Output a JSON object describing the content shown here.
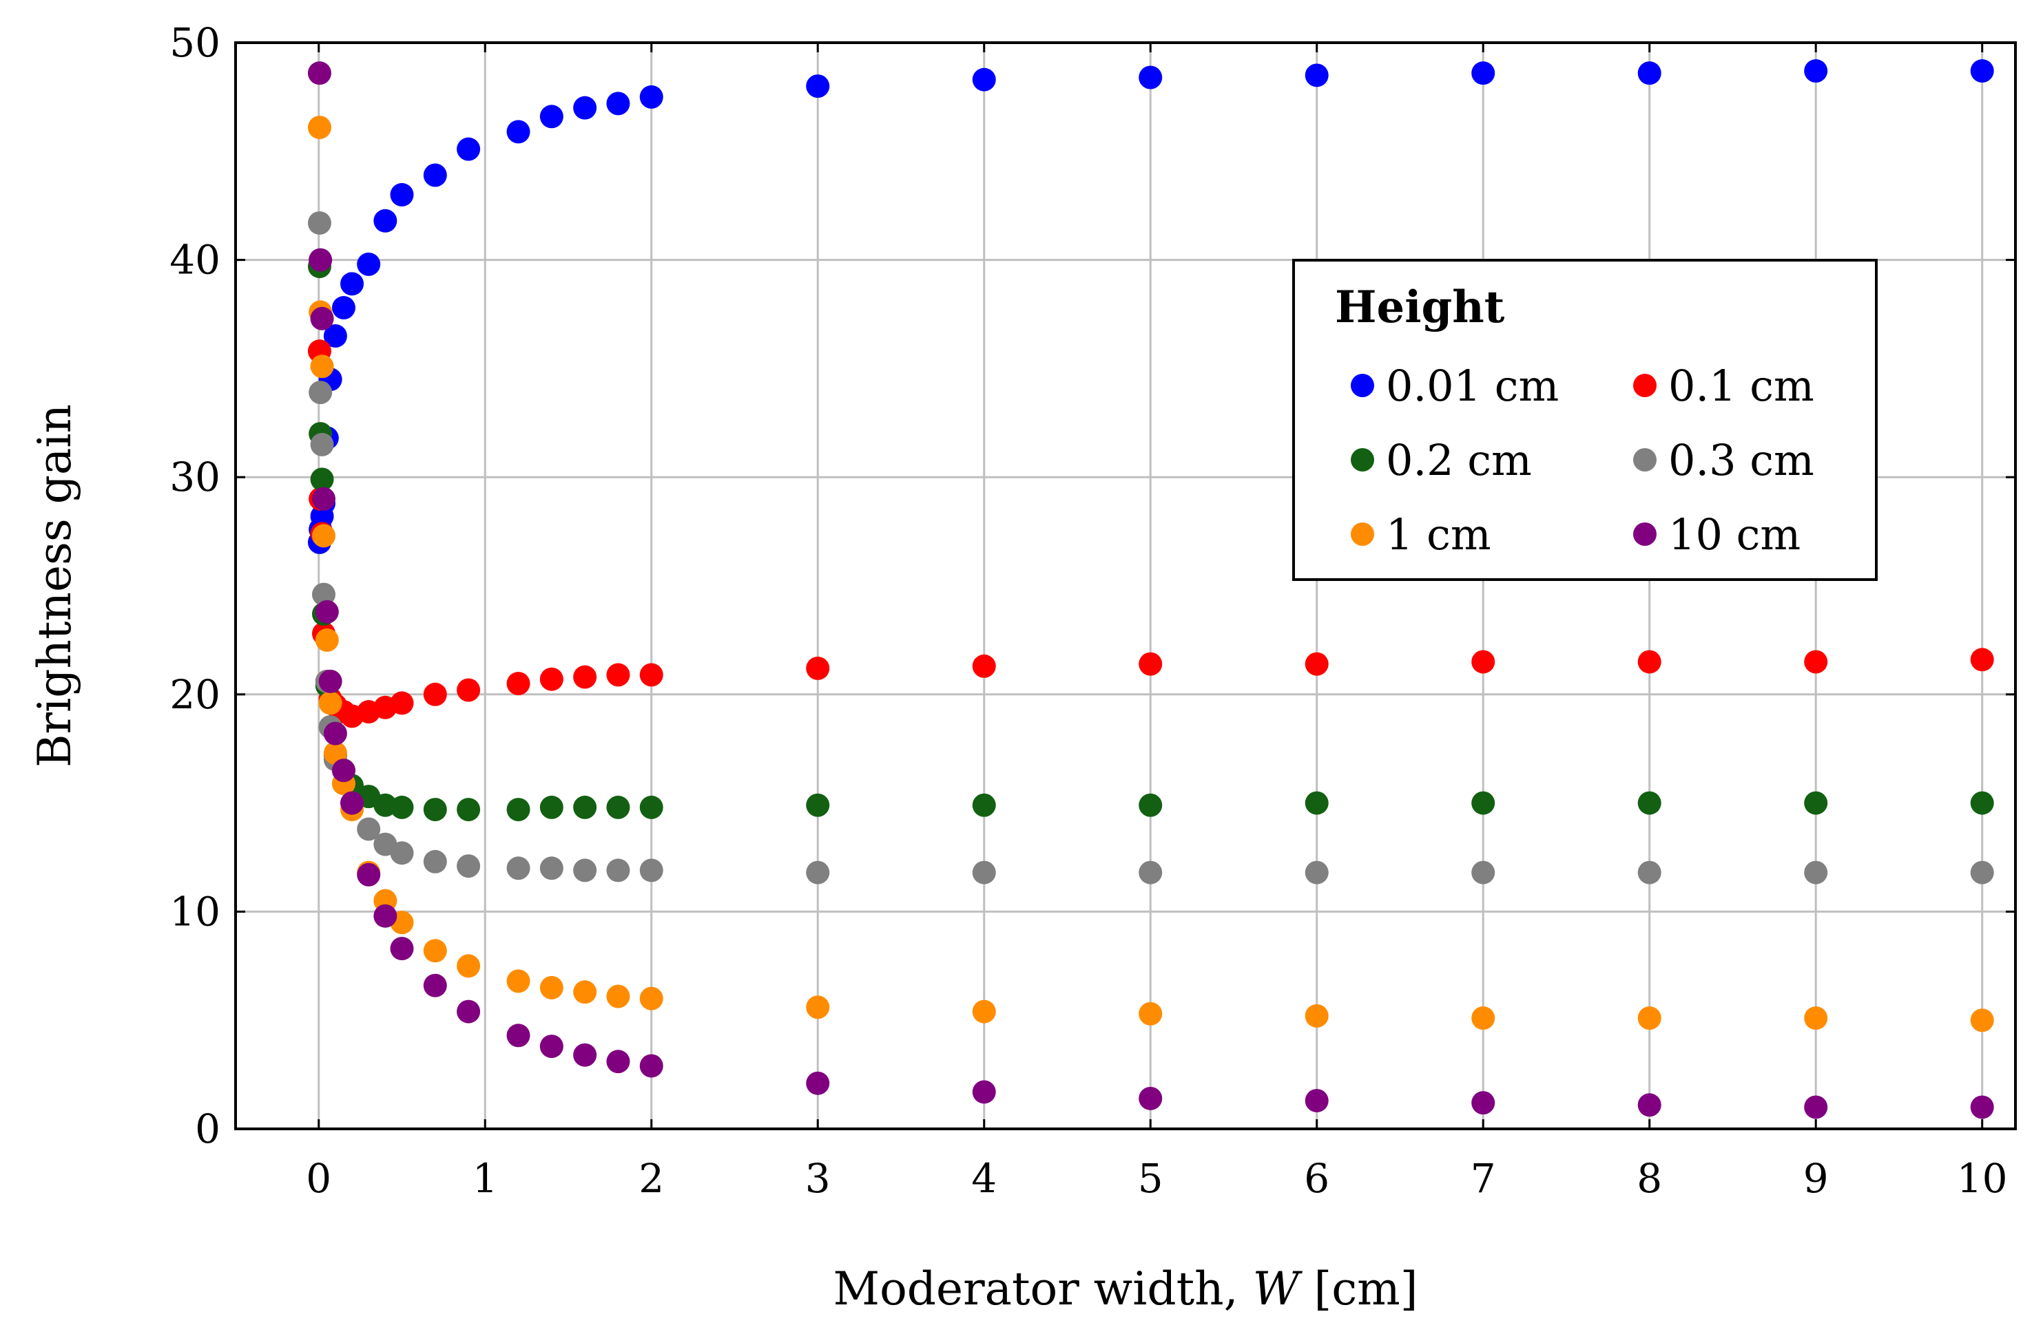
{
  "chart_data": {
    "type": "scatter",
    "title": "",
    "xlabel": "Moderator width, ",
    "xlabel_var": "W",
    "xlabel_unit": " [cm]",
    "ylabel": "Brightness gain",
    "xlim": [
      -0.5,
      10.2
    ],
    "ylim": [
      0,
      50
    ],
    "xticks": [
      0,
      1,
      2,
      3,
      4,
      5,
      6,
      7,
      8,
      9,
      10
    ],
    "yticks": [
      0,
      10,
      20,
      30,
      40,
      50
    ],
    "grid": true,
    "legend": {
      "title": "Height",
      "position": "upper-right"
    },
    "series": [
      {
        "name": "0.01 cm",
        "color": "#0000ff",
        "x": [
          0.005,
          0.01,
          0.02,
          0.03,
          0.05,
          0.07,
          0.1,
          0.15,
          0.2,
          0.3,
          0.4,
          0.5,
          0.7,
          0.9,
          1.2,
          1.4,
          1.6,
          1.8,
          2,
          3,
          4,
          5,
          6,
          7,
          8,
          9,
          10
        ],
        "y": [
          27.0,
          27.6,
          28.2,
          28.8,
          31.8,
          34.5,
          36.5,
          37.8,
          38.9,
          39.8,
          41.8,
          43.0,
          43.9,
          45.1,
          45.9,
          46.6,
          47.0,
          47.2,
          47.5,
          48.0,
          48.3,
          48.4,
          48.5,
          48.6,
          48.6,
          48.7,
          48.7
        ]
      },
      {
        "name": "0.1 cm",
        "color": "#ff0000",
        "x": [
          0.005,
          0.01,
          0.02,
          0.03,
          0.05,
          0.07,
          0.1,
          0.15,
          0.2,
          0.3,
          0.4,
          0.5,
          0.7,
          0.9,
          1.2,
          1.4,
          1.6,
          1.8,
          2,
          3,
          4,
          5,
          6,
          7,
          8,
          9,
          10
        ],
        "y": [
          35.8,
          29.0,
          27.4,
          22.8,
          20.6,
          19.8,
          19.5,
          19.2,
          19.0,
          19.2,
          19.4,
          19.6,
          20.0,
          20.2,
          20.5,
          20.7,
          20.8,
          20.9,
          20.9,
          21.2,
          21.3,
          21.4,
          21.4,
          21.5,
          21.5,
          21.5,
          21.6
        ]
      },
      {
        "name": "0.2 cm",
        "color": "#136013",
        "x": [
          0.005,
          0.01,
          0.02,
          0.03,
          0.05,
          0.07,
          0.1,
          0.15,
          0.2,
          0.3,
          0.4,
          0.5,
          0.7,
          0.9,
          1.2,
          1.4,
          1.6,
          1.8,
          2,
          3,
          4,
          5,
          6,
          7,
          8,
          9,
          10
        ],
        "y": [
          39.7,
          32.0,
          29.9,
          23.7,
          20.4,
          18.5,
          17.2,
          16.5,
          15.8,
          15.3,
          14.9,
          14.8,
          14.7,
          14.7,
          14.7,
          14.8,
          14.8,
          14.8,
          14.8,
          14.9,
          14.9,
          14.9,
          15.0,
          15.0,
          15.0,
          15.0,
          15.0
        ]
      },
      {
        "name": "0.3 cm",
        "color": "#808080",
        "x": [
          0.005,
          0.01,
          0.02,
          0.03,
          0.05,
          0.07,
          0.1,
          0.15,
          0.2,
          0.3,
          0.4,
          0.5,
          0.7,
          0.9,
          1.2,
          1.4,
          1.6,
          1.8,
          2,
          3,
          4,
          5,
          6,
          7,
          8,
          9,
          10
        ],
        "y": [
          41.7,
          33.9,
          31.5,
          24.6,
          20.6,
          18.5,
          17.0,
          15.9,
          15.0,
          13.8,
          13.1,
          12.7,
          12.3,
          12.1,
          12.0,
          12.0,
          11.9,
          11.9,
          11.9,
          11.8,
          11.8,
          11.8,
          11.8,
          11.8,
          11.8,
          11.8,
          11.8
        ]
      },
      {
        "name": "1 cm",
        "color": "#ff8c00",
        "x": [
          0.005,
          0.01,
          0.02,
          0.03,
          0.05,
          0.07,
          0.1,
          0.15,
          0.2,
          0.3,
          0.4,
          0.5,
          0.7,
          0.9,
          1.2,
          1.4,
          1.6,
          1.8,
          2,
          3,
          4,
          5,
          6,
          7,
          8,
          9,
          10
        ],
        "y": [
          46.1,
          37.6,
          35.1,
          27.3,
          22.5,
          19.6,
          17.3,
          15.9,
          14.7,
          11.8,
          10.5,
          9.5,
          8.2,
          7.5,
          6.8,
          6.5,
          6.3,
          6.1,
          6.0,
          5.6,
          5.4,
          5.3,
          5.2,
          5.1,
          5.1,
          5.1,
          5.0
        ]
      },
      {
        "name": "10 cm",
        "color": "#800080",
        "x": [
          0.005,
          0.01,
          0.02,
          0.03,
          0.05,
          0.07,
          0.1,
          0.15,
          0.2,
          0.3,
          0.4,
          0.5,
          0.7,
          0.9,
          1.2,
          1.4,
          1.6,
          1.8,
          2,
          3,
          4,
          5,
          6,
          7,
          8,
          9,
          10
        ],
        "y": [
          48.6,
          40.0,
          37.3,
          29.0,
          23.8,
          20.6,
          18.2,
          16.5,
          15.0,
          11.7,
          9.8,
          8.3,
          6.6,
          5.4,
          4.3,
          3.8,
          3.4,
          3.1,
          2.9,
          2.1,
          1.7,
          1.4,
          1.3,
          1.2,
          1.1,
          1.0,
          1.0
        ]
      }
    ]
  }
}
